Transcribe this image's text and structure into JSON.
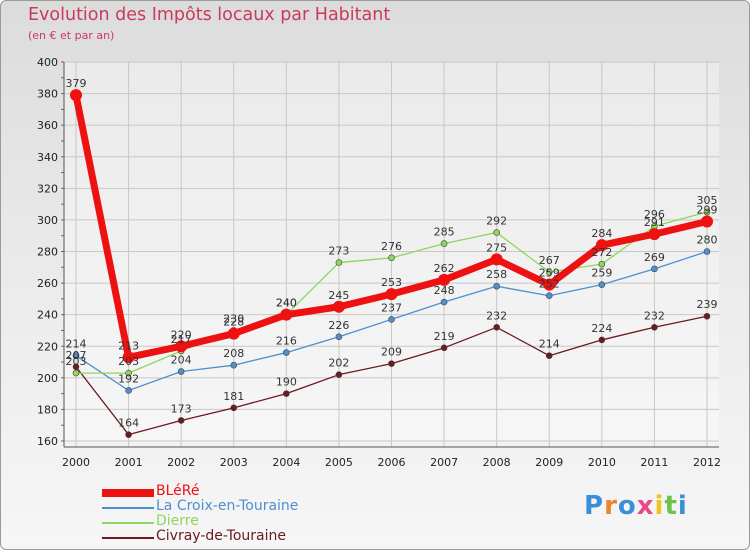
{
  "header": {
    "title": "Evolution des Impôts locaux par Habitant",
    "subtitle": "(en € et par an)"
  },
  "chart_data": {
    "type": "line",
    "title": "Evolution des Impôts locaux par Habitant",
    "subtitle": "(en € et par an)",
    "xlabel": "",
    "ylabel": "",
    "ylim": [
      160,
      400
    ],
    "yticks": [
      160,
      180,
      200,
      220,
      240,
      260,
      280,
      300,
      320,
      340,
      360,
      380,
      400
    ],
    "grid": true,
    "legend_position": "bottom-left",
    "categories": [
      "2000",
      "2001",
      "2002",
      "2003",
      "2004",
      "2005",
      "2006",
      "2007",
      "2008",
      "2009",
      "2010",
      "2011",
      "2012"
    ],
    "series": [
      {
        "name": "Civray-de-Touraine",
        "color": "#6b1a1f",
        "values": [
          207,
          164,
          173,
          181,
          190,
          202,
          209,
          219,
          232,
          214,
          224,
          232,
          239
        ]
      },
      {
        "name": "La Croix-en-Touraine",
        "color": "#4f8fcd",
        "values": [
          214,
          192,
          204,
          208,
          216,
          226,
          237,
          248,
          258,
          252,
          259,
          269,
          280
        ]
      },
      {
        "name": "Dierre",
        "color": "#8ed65c",
        "values": [
          203,
          203,
          217,
          230,
          240,
          273,
          276,
          285,
          292,
          267,
          272,
          296,
          305
        ]
      },
      {
        "name": "BLéRé",
        "color": "#ee1111",
        "values": [
          379,
          213,
          220,
          228,
          240,
          245,
          253,
          262,
          275,
          259,
          284,
          291,
          299
        ]
      }
    ]
  },
  "legend": {
    "items": [
      {
        "label": "BLéRé",
        "color": "#ee1111"
      },
      {
        "label": "La Croix-en-Touraine",
        "color": "#4f8fcd"
      },
      {
        "label": "Dierre",
        "color": "#8ed65c"
      },
      {
        "label": "Civray-de-Touraine",
        "color": "#6b1a1f"
      }
    ]
  },
  "brand": {
    "letters": [
      "P",
      "r",
      "o",
      "x",
      "i",
      "t",
      "i"
    ],
    "colors": [
      "#3b8fd6",
      "#e8862a",
      "#3b8fd6",
      "#e84a8a",
      "#f0c419",
      "#6cc24a",
      "#3b8fd6"
    ]
  }
}
